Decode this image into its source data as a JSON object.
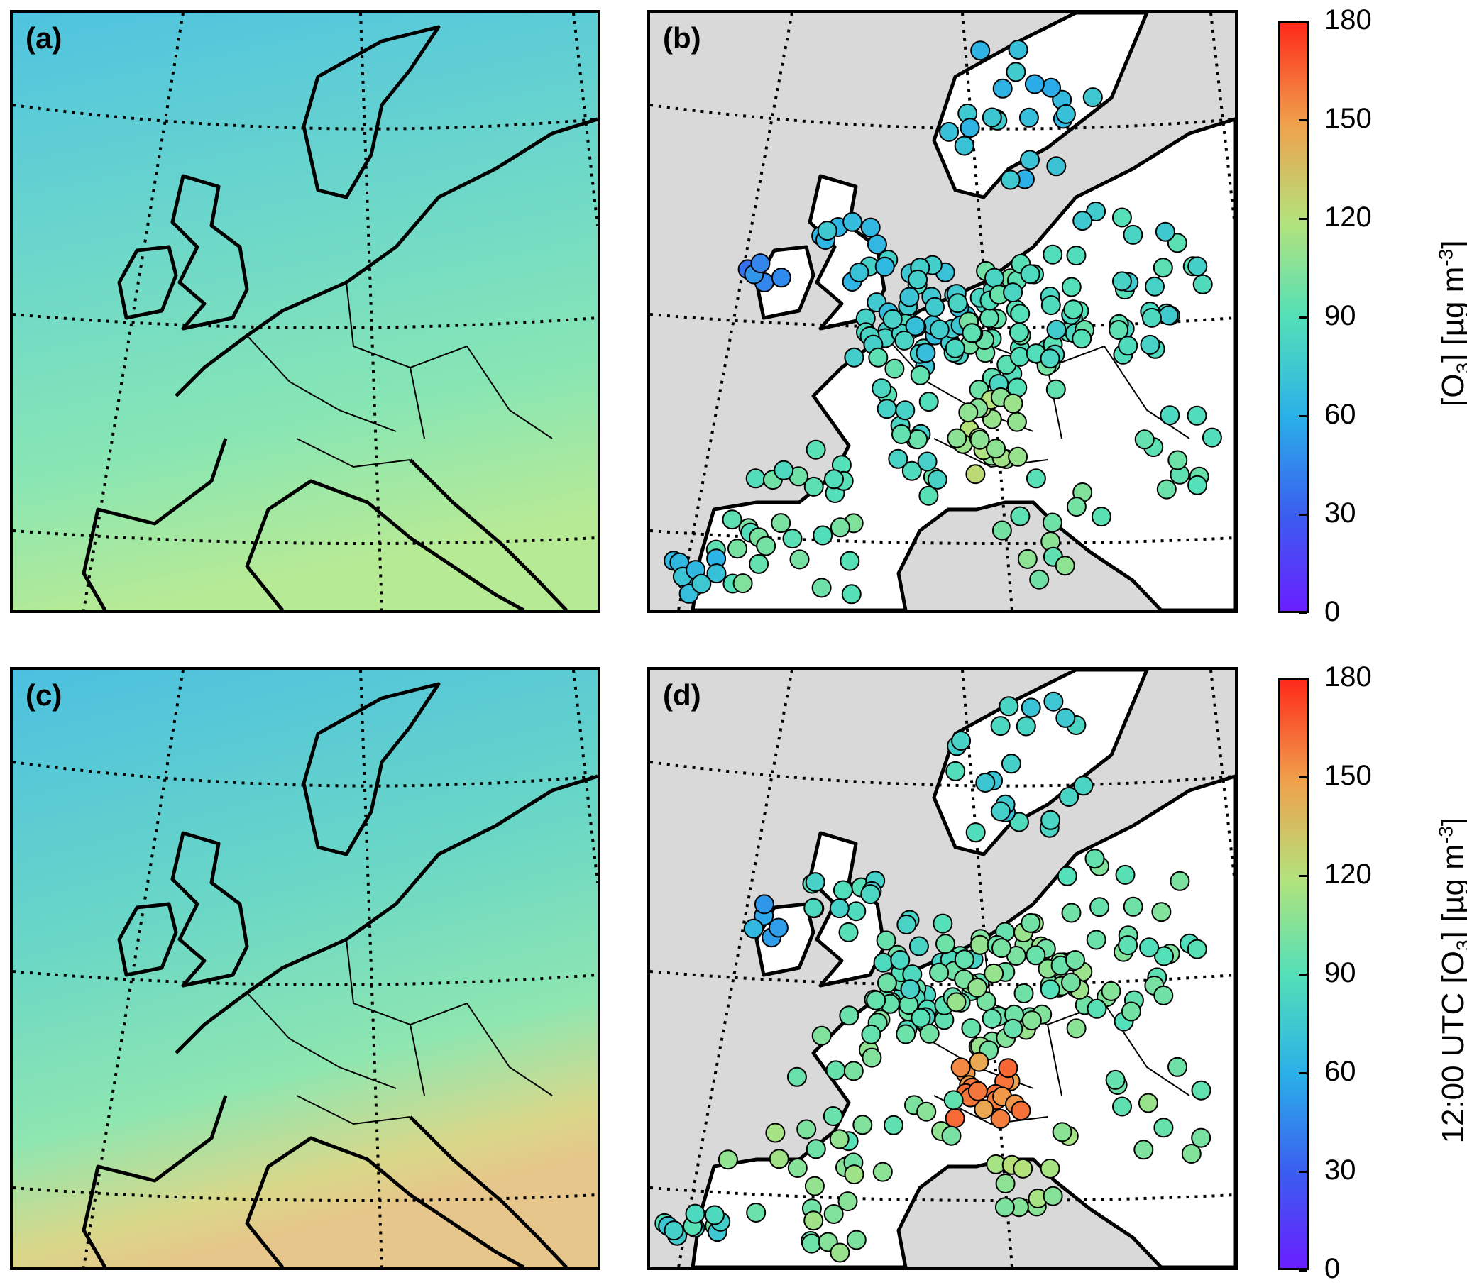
{
  "panels": [
    {
      "id": "a",
      "label": "(a)",
      "kind": "model"
    },
    {
      "id": "b",
      "label": "(b)",
      "kind": "stations"
    },
    {
      "id": "c",
      "label": "(c)",
      "kind": "model"
    },
    {
      "id": "d",
      "label": "(d)",
      "kind": "stations"
    }
  ],
  "colorbar": {
    "ticks": [
      "0",
      "30",
      "60",
      "90",
      "120",
      "150",
      "180"
    ],
    "range": [
      0,
      180
    ],
    "colormap": "rainbow",
    "top_label_prefix": "[O",
    "top_label_sub": "3",
    "top_label_mid": "] [µg m",
    "top_label_sup": "-3",
    "top_label_end": "]",
    "bottom_label_prefix": "12:00  UTC [O",
    "bottom_label_sub": "3",
    "bottom_label_mid": "] [µg m",
    "bottom_label_sup": "-3",
    "bottom_label_end": "]"
  },
  "colors": {
    "ocean_bg": "#d9d9d9",
    "land_bg": "#ffffff",
    "model_low": "#56c8d8",
    "model_mid": "#7ee4bf",
    "model_high": "#c8ea8a"
  }
}
